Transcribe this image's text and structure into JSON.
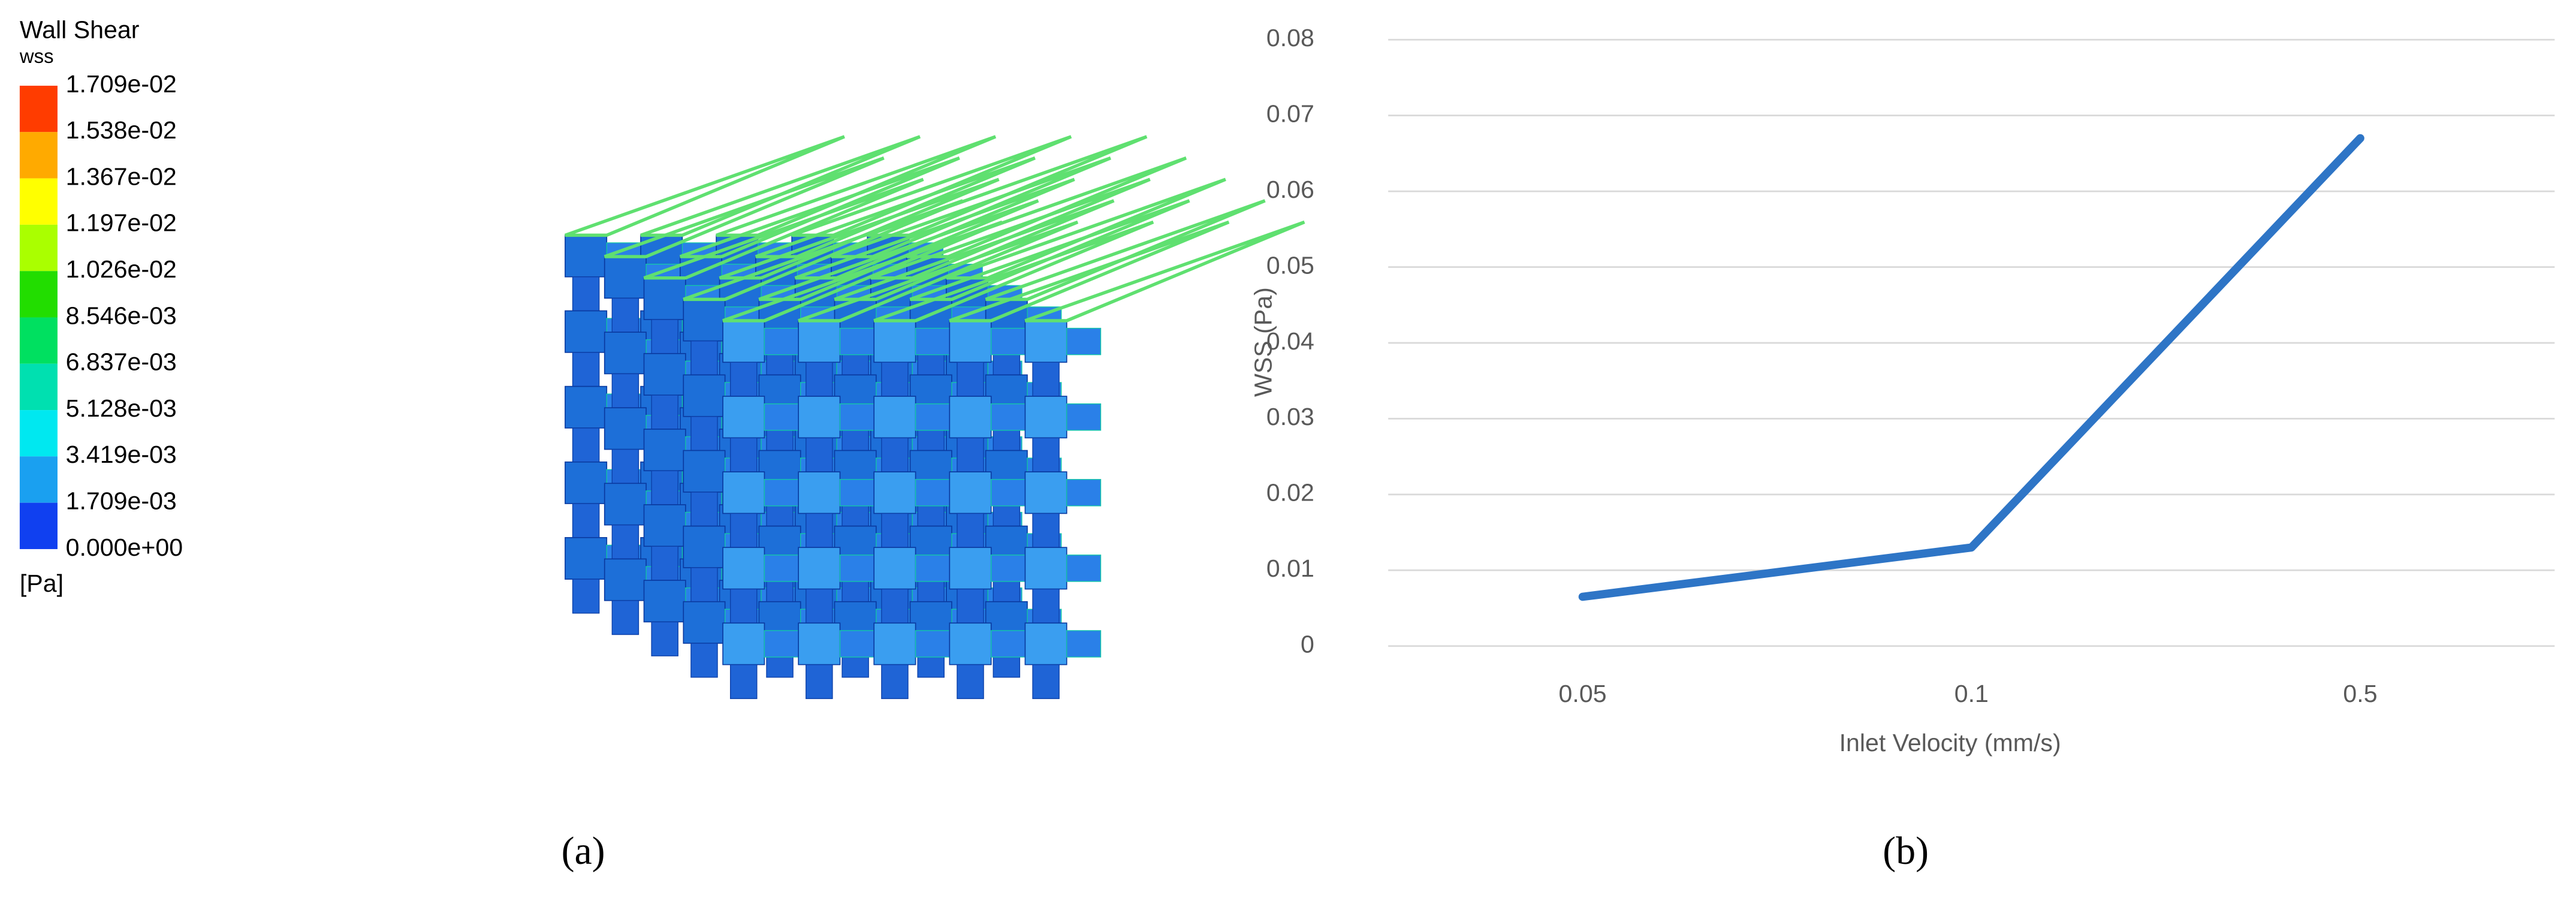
{
  "panel_a": {
    "title": "Wall Shear",
    "variable": "wss",
    "unit": "[Pa]",
    "colorbar_labels": [
      "1.709e-02",
      "1.538e-02",
      "1.367e-02",
      "1.197e-02",
      "1.026e-02",
      "8.546e-03",
      "6.837e-03",
      "5.128e-03",
      "3.419e-03",
      "1.709e-03",
      "0.000e+00"
    ],
    "colorbar_colors": [
      "#ff3c00",
      "#ffaa00",
      "#ffff00",
      "#aaff00",
      "#22dd00",
      "#00e060",
      "#00e0b0",
      "#00e8f0",
      "#1aa0f0",
      "#1040f0"
    ]
  },
  "chart_data": {
    "type": "line",
    "x_label": "Inlet Velocity (mm/s)",
    "y_label": "WSS (Pa)",
    "categories": [
      "0.05",
      "0.1",
      "0.5"
    ],
    "series": [
      {
        "name": "WSS",
        "color": "#2e75c6",
        "values": [
          0.0065,
          0.013,
          0.067
        ]
      }
    ],
    "ylim": [
      0,
      0.08
    ],
    "yticks": [
      0,
      0.01,
      0.02,
      0.03,
      0.04,
      0.05,
      0.06,
      0.07,
      0.08
    ],
    "grid": true
  },
  "captions": [
    "(a)",
    "(b)"
  ]
}
